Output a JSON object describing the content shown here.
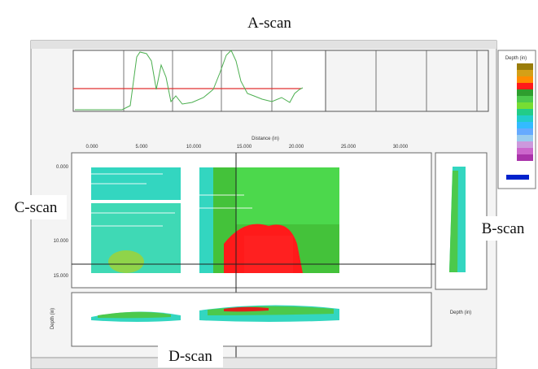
{
  "labels": {
    "a_scan": "A-scan",
    "b_scan": "B-scan",
    "c_scan": "C-scan",
    "d_scan": "D-scan"
  },
  "c_scan": {
    "x_axis_title": "Distance (in)",
    "xticks": [
      "0.000",
      "5.000",
      "10.000",
      "15.000",
      "20.000",
      "25.000",
      "30.000"
    ],
    "yticks": [
      "0.000",
      "10.000",
      "15.000"
    ]
  },
  "legend": {
    "title": "Depth (in)"
  },
  "b_scan": {
    "x_axis_title": "Depth (in)"
  },
  "d_scan": {
    "y_axis_title": "Depth (in)"
  }
}
